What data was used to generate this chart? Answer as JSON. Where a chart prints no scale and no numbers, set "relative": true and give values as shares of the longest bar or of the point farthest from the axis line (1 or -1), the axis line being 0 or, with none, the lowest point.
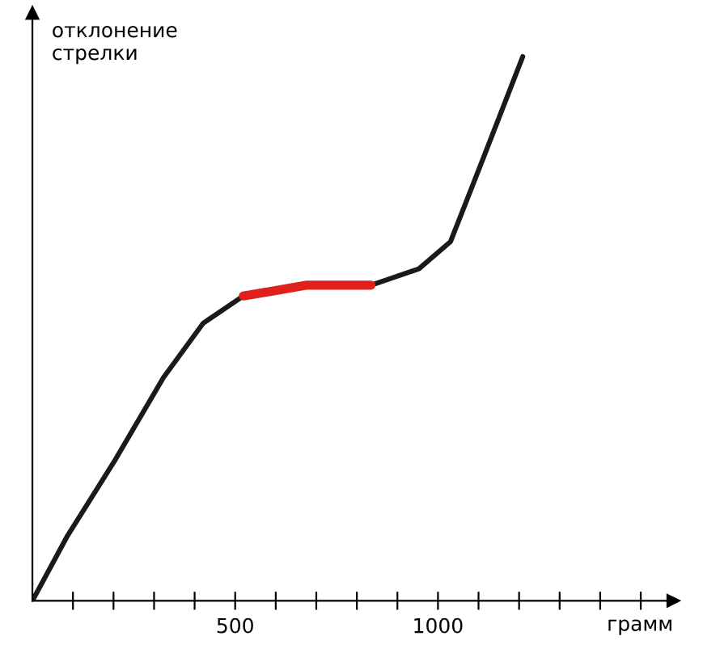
{
  "chart_data": {
    "type": "line",
    "relative": true,
    "xlabel": "грамм",
    "ylabel": "отклонение\nстрелки",
    "xlim": [
      0,
      1580
    ],
    "xticks": [
      {
        "value": 100,
        "label": null
      },
      {
        "value": 200,
        "label": null
      },
      {
        "value": 300,
        "label": null
      },
      {
        "value": 400,
        "label": null
      },
      500,
      {
        "value": 600,
        "label": null
      },
      {
        "value": 700,
        "label": null
      },
      {
        "value": 800,
        "label": null
      },
      {
        "value": 900,
        "label": null
      },
      1000,
      {
        "value": 1100,
        "label": null
      },
      {
        "value": 1200,
        "label": null
      },
      {
        "value": 1300,
        "label": null
      },
      {
        "value": 1400,
        "label": null
      },
      {
        "value": 1500,
        "label": null
      }
    ],
    "grid": false,
    "legend": false,
    "marker": "none",
    "line_style": "solid",
    "tick_labels": "x",
    "series": [
      {
        "color": "#1a1a1a",
        "x": [
          0,
          87,
          205,
          323,
          421,
          520
        ],
        "values": [
          0,
          0.12,
          0.26,
          0.41,
          0.51,
          0.56
        ]
      },
      {
        "color": "#1a1a1a",
        "x": [
          835,
          953,
          1031,
          1110,
          1209
        ],
        "values": [
          0.58,
          0.61,
          0.66,
          0.81,
          1
        ]
      },
      {
        "color": "#e0201c",
        "x": [
          520,
          600,
          677,
          760,
          835
        ],
        "values": [
          0.56,
          0.57,
          0.58,
          0.58,
          0.58
        ]
      }
    ]
  }
}
